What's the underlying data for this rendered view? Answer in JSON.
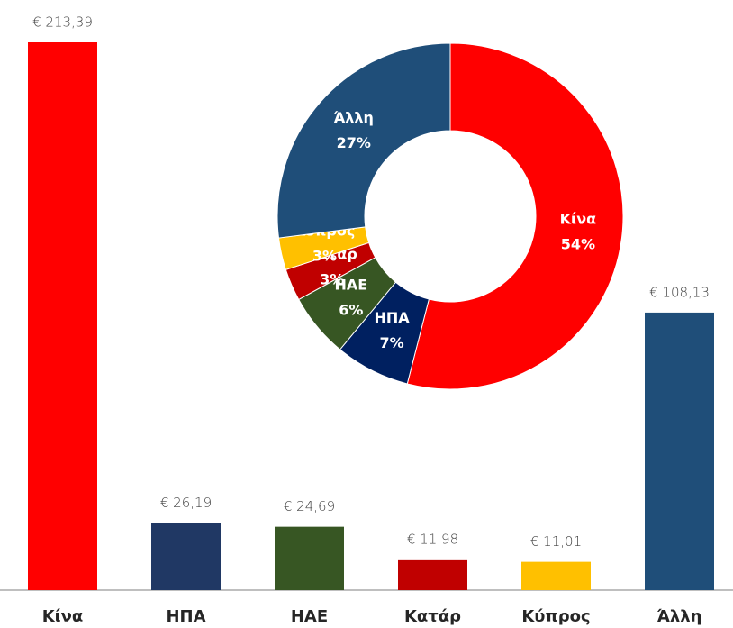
{
  "chart_data": [
    {
      "type": "bar",
      "categories": [
        "Κίνα",
        "ΗΠΑ",
        "ΗΑΕ",
        "Κατάρ",
        "Κύπρος",
        "Άλλη"
      ],
      "values": [
        213.39,
        26.19,
        24.69,
        11.98,
        11.01,
        108.13
      ],
      "value_labels": [
        "€ 213,39",
        "€ 26,19",
        "€ 24,69",
        "€ 11,98",
        "€ 11,01",
        "€ 108,13"
      ],
      "colors": [
        "#ff0000",
        "#203864",
        "#375623",
        "#c00000",
        "#ffc000",
        "#1f4e79"
      ]
    },
    {
      "type": "donut",
      "categories": [
        "Κίνα",
        "ΗΠΑ",
        "ΗΑΕ",
        "Κατάρ",
        "Κύπρος",
        "Άλλη"
      ],
      "values": [
        54,
        7,
        6,
        3,
        3,
        27
      ],
      "value_labels": [
        "54%",
        "7%",
        "6%",
        "3%",
        "3%",
        "27%"
      ],
      "colors": [
        "#ff0000",
        "#002060",
        "#375623",
        "#c00000",
        "#ffc000",
        "#1f4e79"
      ]
    }
  ]
}
